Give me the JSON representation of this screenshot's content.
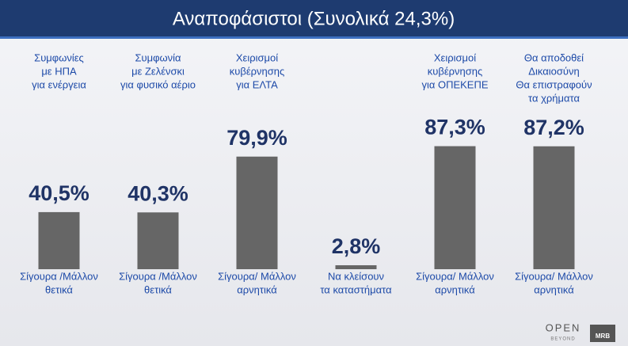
{
  "chart_data": {
    "type": "bar",
    "title": "Αναποφάσιστοι (Συνολικά 24,3%)",
    "categories": [
      [
        "Συμφωνίες",
        "με ΗΠΑ",
        "για ενέργεια"
      ],
      [
        "Συμφωνία",
        "με Ζελένσκι",
        "για φυσικό αέριο"
      ],
      [
        "Χειρισμοί",
        "κυβέρνησης",
        "για ΕΛΤΑ"
      ],
      null,
      [
        "Χειρισμοί",
        "κυβέρνησης",
        "για ΟΠΕΚΕΠΕ"
      ],
      [
        "Θα αποδοθεί",
        "Δικαιοσύνη",
        "Θα επιστραφούν",
        "τα χρήματα"
      ]
    ],
    "bottom_labels": [
      [
        "Σίγουρα /Μάλλον",
        "θετικά"
      ],
      [
        "Σίγουρα /Μάλλον",
        "θετικά"
      ],
      [
        "Σίγουρα/ Μάλλον",
        "αρνητικά"
      ],
      [
        "Να κλείσουν",
        "τα καταστήματα"
      ],
      [
        "Σίγουρα/ Μάλλον",
        "αρνητικά"
      ],
      [
        "Σίγουρα/ Μάλλον",
        "αρνητικά"
      ]
    ],
    "values": [
      40.5,
      40.3,
      79.9,
      2.8,
      87.3,
      87.2
    ],
    "value_labels": [
      "40,5%",
      "40,3%",
      "79,9%",
      "2,8%",
      "87,3%",
      "87,2%"
    ],
    "color": "#666666"
  },
  "logos": {
    "open": "OPEN",
    "beyond": "BEYOND",
    "mrb": "MRB"
  }
}
